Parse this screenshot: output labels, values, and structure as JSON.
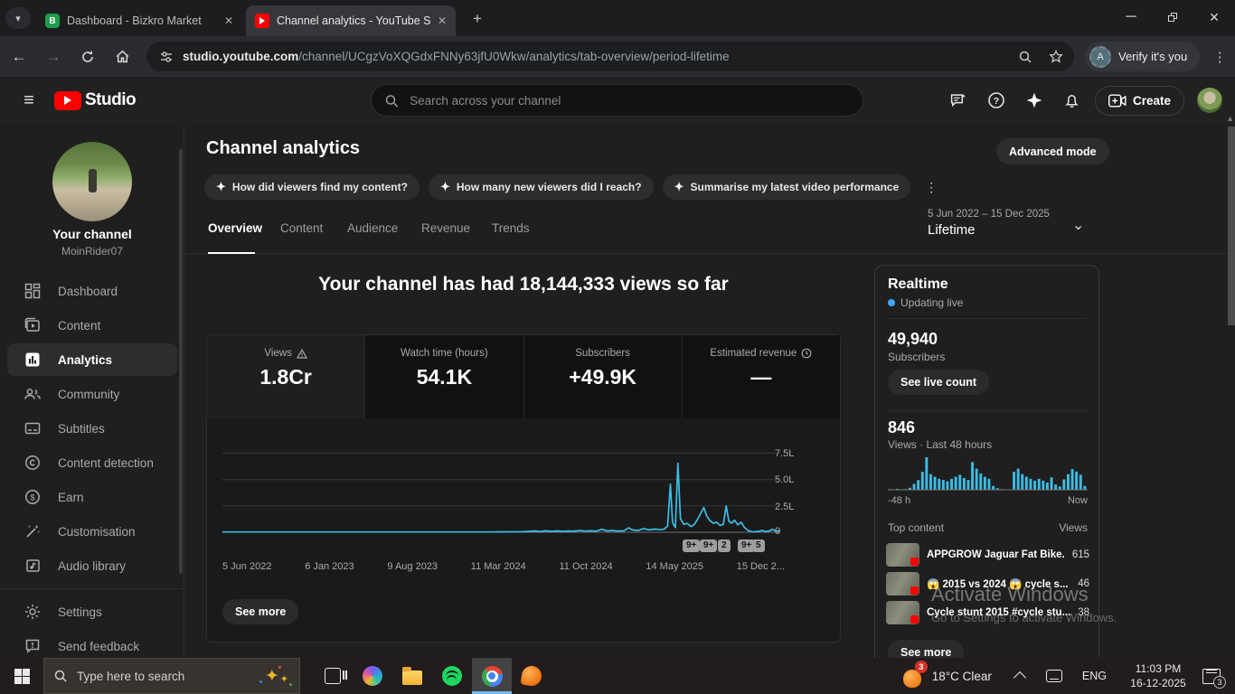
{
  "browser": {
    "tabs": [
      {
        "title": "Dashboard - Bizkro Market",
        "favicon_letter": "B",
        "active": false
      },
      {
        "title": "Channel analytics - YouTube Stu",
        "favicon": "youtube",
        "active": true
      }
    ],
    "url": {
      "host": "studio.youtube.com",
      "path": "/channel/UCgzVoXQGdxFNNy63jfU0Wkw/analytics/tab-overview/period-lifetime"
    },
    "verify_button": "Verify it's you",
    "verify_avatar_letter": "A"
  },
  "studio_header": {
    "brand": "Studio",
    "search_placeholder": "Search across your channel",
    "create_button": "Create"
  },
  "sidebar": {
    "channel_title": "Your channel",
    "channel_handle": "MoinRider07",
    "items": [
      {
        "label": "Dashboard"
      },
      {
        "label": "Content"
      },
      {
        "label": "Analytics"
      },
      {
        "label": "Community"
      },
      {
        "label": "Subtitles"
      },
      {
        "label": "Content detection"
      },
      {
        "label": "Earn"
      },
      {
        "label": "Customisation"
      },
      {
        "label": "Audio library"
      }
    ],
    "footer_items": [
      {
        "label": "Settings"
      },
      {
        "label": "Send feedback"
      }
    ]
  },
  "analytics": {
    "page_title": "Channel analytics",
    "advanced_mode_button": "Advanced mode",
    "ai_chips": [
      "How did viewers find my content?",
      "How many new viewers did I reach?",
      "Summarise my latest video performance"
    ],
    "tabs": [
      "Overview",
      "Content",
      "Audience",
      "Revenue",
      "Trends"
    ],
    "date_range": "5 Jun 2022 – 15 Dec 2025",
    "period_label": "Lifetime",
    "headline": "Your channel has had 18,144,333 views so far",
    "metric_cards": [
      {
        "label": "Views",
        "value": "1.8Cr"
      },
      {
        "label": "Watch time (hours)",
        "value": "54.1K"
      },
      {
        "label": "Subscribers",
        "value": "+49.9K"
      },
      {
        "label": "Estimated revenue",
        "value": "—"
      }
    ],
    "see_more_button": "See more"
  },
  "realtime": {
    "title": "Realtime",
    "status": "Updating live",
    "subscriber_count": "49,940",
    "subscriber_label": "Subscribers",
    "live_count_button": "See live count",
    "views_count": "846",
    "views_label": "Views · Last 48 hours",
    "axis_start": "-48 h",
    "axis_end": "Now",
    "table_header_left": "Top content",
    "table_header_right": "Views",
    "top_content": [
      {
        "title": "APPGROW Jaguar Fat Bike...",
        "views": "615"
      },
      {
        "title": "😱 2015 vs 2024 😱 cycle s...",
        "views": "46"
      },
      {
        "title": "Cycle stunt 2015 #cycle stu...",
        "views": "38"
      }
    ],
    "see_more_button": "See more"
  },
  "watermark": {
    "line1": "Activate Windows",
    "line2": "Go to Settings to activate Windows."
  },
  "taskbar": {
    "search_placeholder": "Type here to search",
    "weather_text": "18°C  Clear",
    "weather_badge": "3",
    "language": "ENG",
    "time": "11:03 PM",
    "date": "16-12-2025",
    "notification_badge": "3"
  },
  "chart_data": [
    {
      "type": "line",
      "title": "Channel views over time (lifetime)",
      "ylabel": "Views (L = lakh)",
      "y_ticks": [
        "7.5L",
        "5.0L",
        "2.5L",
        "0"
      ],
      "y_grid_values": [
        7.5,
        5.0,
        2.5,
        0
      ],
      "ylim": [
        0,
        8.4
      ],
      "x_ticks": [
        "5 Jun 2022",
        "6 Jan 2023",
        "9 Aug 2023",
        "11 Mar 2024",
        "11 Oct 2024",
        "14 May 2025",
        "15 Dec 2..."
      ],
      "grid": true,
      "legend": false,
      "line_color": "#3cbde6",
      "points": [
        [
          0,
          0.03
        ],
        [
          0.08,
          0.03
        ],
        [
          0.16,
          0.03
        ],
        [
          0.24,
          0.03
        ],
        [
          0.32,
          0.03
        ],
        [
          0.4,
          0.03
        ],
        [
          0.48,
          0.03
        ],
        [
          0.54,
          0.05
        ],
        [
          0.56,
          0.12
        ],
        [
          0.57,
          0.07
        ],
        [
          0.58,
          0.14
        ],
        [
          0.59,
          0.09
        ],
        [
          0.6,
          0.13
        ],
        [
          0.61,
          0.09
        ],
        [
          0.62,
          0.12
        ],
        [
          0.63,
          0.1
        ],
        [
          0.64,
          0.16
        ],
        [
          0.65,
          0.11
        ],
        [
          0.66,
          0.14
        ],
        [
          0.67,
          0.1
        ],
        [
          0.68,
          0.28
        ],
        [
          0.69,
          0.13
        ],
        [
          0.7,
          0.16
        ],
        [
          0.71,
          0.11
        ],
        [
          0.72,
          0.14
        ],
        [
          0.728,
          0.42
        ],
        [
          0.735,
          0.22
        ],
        [
          0.745,
          0.16
        ],
        [
          0.755,
          0.34
        ],
        [
          0.765,
          0.22
        ],
        [
          0.775,
          0.3
        ],
        [
          0.785,
          0.24
        ],
        [
          0.792,
          0.3
        ],
        [
          0.798,
          0.6
        ],
        [
          0.803,
          4.55
        ],
        [
          0.807,
          0.9
        ],
        [
          0.812,
          0.45
        ],
        [
          0.8165,
          6.55
        ],
        [
          0.821,
          1.3
        ],
        [
          0.827,
          0.75
        ],
        [
          0.833,
          0.85
        ],
        [
          0.84,
          0.55
        ],
        [
          0.846,
          0.75
        ],
        [
          0.852,
          1.25
        ],
        [
          0.858,
          1.85
        ],
        [
          0.863,
          2.35
        ],
        [
          0.868,
          1.55
        ],
        [
          0.874,
          1.1
        ],
        [
          0.88,
          0.85
        ],
        [
          0.886,
          0.95
        ],
        [
          0.892,
          0.65
        ],
        [
          0.898,
          0.75
        ],
        [
          0.903,
          2.5
        ],
        [
          0.908,
          1.05
        ],
        [
          0.913,
          0.85
        ],
        [
          0.918,
          1.15
        ],
        [
          0.924,
          0.7
        ],
        [
          0.93,
          0.95
        ],
        [
          0.936,
          0.45
        ],
        [
          0.942,
          0.18
        ],
        [
          0.948,
          0.06
        ],
        [
          0.955,
          0.04
        ],
        [
          0.962,
          0.1
        ],
        [
          0.968,
          0.16
        ],
        [
          0.974,
          0.06
        ],
        [
          0.98,
          0.12
        ],
        [
          0.986,
          0.28
        ],
        [
          0.992,
          0.1
        ],
        [
          1,
          0.14
        ]
      ],
      "event_badges": [
        {
          "label": "9+",
          "x": 0.84
        },
        {
          "label": "9+",
          "x": 0.87
        },
        {
          "label": "2",
          "x": 0.903
        },
        {
          "label": "9+",
          "x": 0.938
        },
        {
          "label": "5",
          "x": 0.965
        }
      ]
    },
    {
      "type": "bar",
      "title": "Realtime views · last 48 hours",
      "x_left_label": "-48 h",
      "x_right_label": "Now",
      "bar_color": "#3cbde6",
      "values": [
        2,
        0,
        3,
        0,
        2,
        6,
        18,
        30,
        55,
        100,
        48,
        40,
        34,
        30,
        26,
        34,
        40,
        46,
        36,
        30,
        85,
        65,
        50,
        40,
        34,
        12,
        5,
        2,
        0,
        0,
        55,
        65,
        48,
        40,
        34,
        28,
        34,
        28,
        22,
        38,
        16,
        10,
        32,
        48,
        64,
        56,
        46,
        12
      ]
    }
  ]
}
